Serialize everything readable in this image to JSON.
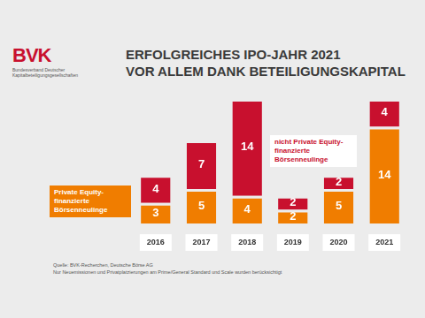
{
  "chart_data": {
    "type": "bar",
    "title": [
      "ERFOLGREICHES IPO-JAHR 2021",
      "VOR ALLEM DANK BETEILIGUNGSKAPITAL"
    ],
    "categories": [
      "2016",
      "2017",
      "2018",
      "2019",
      "2020",
      "2021"
    ],
    "series": [
      {
        "name": "Private Equity-finanzierte Börsenneulinge",
        "color": "#f07d00",
        "values": [
          3,
          5,
          4,
          2,
          5,
          14
        ]
      },
      {
        "name": "nicht Private Equity-finanzierte Börsenneulinge",
        "color": "#c8102e",
        "values": [
          4,
          7,
          14,
          2,
          2,
          4
        ]
      }
    ],
    "stacked": true,
    "data_labels": true,
    "tick_labels": "x",
    "grid": false,
    "annotations": {
      "logo": "BVK",
      "logo_subtitle": "Bundesverband Deutscher Kapitalbeteiligungsgesellschaften",
      "source": "Quelle: BVK-Recherchen, Deutsche Börse AG",
      "note": "Nur Neuemissionen und Privatplatzierungen am Prime/General Standard und Scale wurden berücksichtigt"
    }
  }
}
